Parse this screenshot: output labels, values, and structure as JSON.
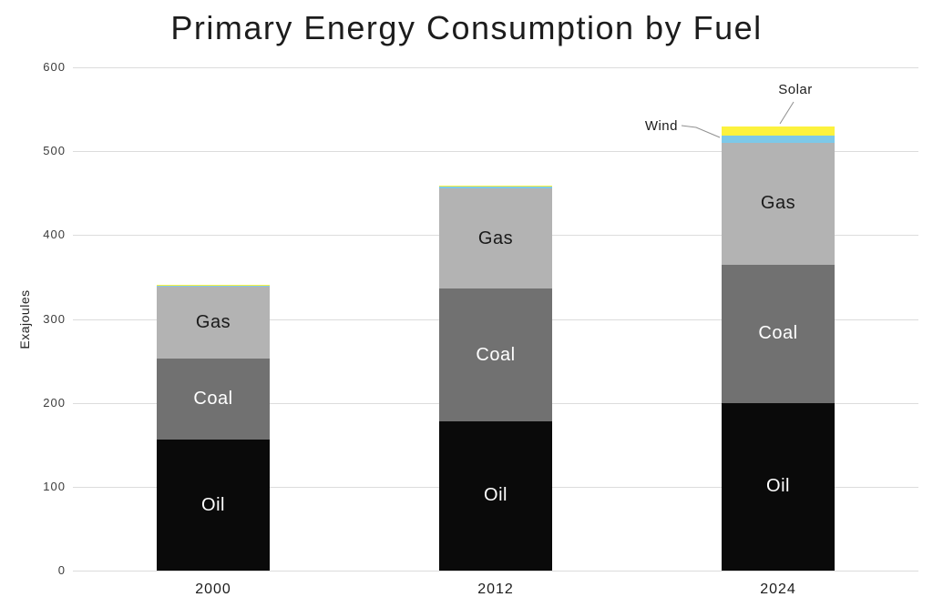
{
  "title": "Primary Energy Consumption by Fuel",
  "chart_data": {
    "type": "bar",
    "stacked": true,
    "title": "Primary Energy Consumption by Fuel",
    "xlabel": "",
    "ylabel": "Exajoules",
    "ylim": [
      0,
      600
    ],
    "y_ticks": [
      600,
      500,
      400,
      300,
      200,
      100,
      0
    ],
    "grid": "horizontal",
    "legend": "none (labels inside bars and leader-line annotations)",
    "categories": [
      "2000",
      "2012",
      "2024"
    ],
    "series": [
      {
        "name": "Oil",
        "color": "#0a0a0a",
        "label_color": "#ffffff",
        "labeled_in_bars": true,
        "values": [
          156,
          178,
          200
        ]
      },
      {
        "name": "Coal",
        "color": "#717171",
        "label_color": "#ffffff",
        "labeled_in_bars": true,
        "values": [
          97,
          158,
          165
        ]
      },
      {
        "name": "Gas",
        "color": "#b3b3b3",
        "label_color": "#1a1a1a",
        "labeled_in_bars": true,
        "values": [
          86,
          120,
          145
        ]
      },
      {
        "name": "Wind",
        "color": "#7dc9e9",
        "label_color": "#1a1a1a",
        "labeled_in_bars": false,
        "values": [
          1,
          2,
          9
        ]
      },
      {
        "name": "Solar",
        "color": "#fcf23e",
        "label_color": "#1a1a1a",
        "labeled_in_bars": false,
        "values": [
          1,
          1,
          11
        ]
      }
    ],
    "totals": [
      341,
      459,
      530
    ],
    "annotations": [
      {
        "text": "Wind",
        "target_series": "Wind",
        "target_category": "2024"
      },
      {
        "text": "Solar",
        "target_series": "Solar",
        "target_category": "2024"
      }
    ],
    "colors": {
      "background": "#ffffff",
      "gridline": "#dcdcdc",
      "text": "#1c1c1c",
      "leader_line": "#909090"
    }
  }
}
